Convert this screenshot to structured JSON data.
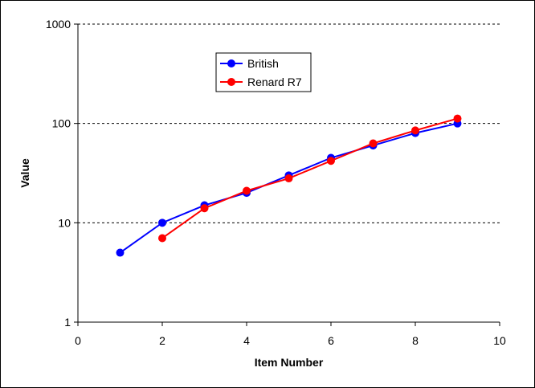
{
  "chart_data": {
    "type": "line",
    "title": "",
    "xlabel": "Item Number",
    "ylabel": "Value",
    "xlim": [
      0,
      10
    ],
    "ylim": [
      1,
      1000
    ],
    "yscale": "log",
    "x_ticks": [
      "0",
      "2",
      "4",
      "6",
      "8",
      "10"
    ],
    "y_ticks": [
      "1",
      "10",
      "100",
      "1000"
    ],
    "grid": "horizontal-dashed",
    "legend_position": "top-center",
    "series": [
      {
        "name": "British",
        "color": "#0000ff",
        "x": [
          1,
          2,
          3,
          4,
          5,
          6,
          7,
          8,
          9
        ],
        "values": [
          5,
          10,
          15,
          20,
          30,
          45,
          60,
          80,
          100
        ]
      },
      {
        "name": "Renard R7",
        "color": "#ff0000",
        "x": [
          2,
          3,
          4,
          5,
          6,
          7,
          8,
          9
        ],
        "values": [
          7,
          14,
          21,
          28,
          42,
          63,
          85,
          112
        ]
      }
    ]
  }
}
